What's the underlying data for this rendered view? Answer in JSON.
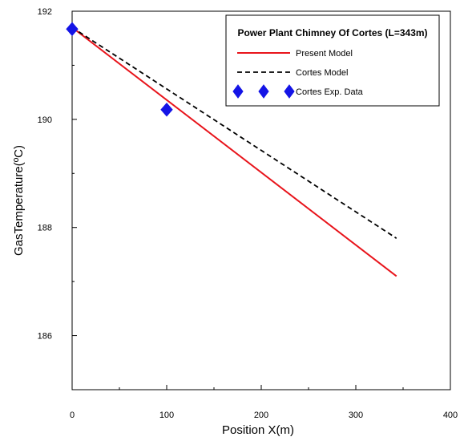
{
  "chart_data": {
    "type": "line",
    "title": "",
    "xlabel": "Position X(m)",
    "ylabel": "GasTemperature(ºC)",
    "xlim": [
      0,
      400
    ],
    "ylim": [
      185,
      192
    ],
    "x_ticks": [
      0,
      100,
      200,
      300,
      400
    ],
    "x_tick_labels": [
      "0",
      "100",
      "200",
      "300",
      "400"
    ],
    "y_ticks": [
      186,
      188,
      190,
      192
    ],
    "y_tick_labels": [
      "186",
      "188",
      "190",
      "192"
    ],
    "grid": false,
    "legend": {
      "title": "Power Plant Chimney Of Cortes (L=343m)",
      "placement": "top-right"
    },
    "series": [
      {
        "name": "Present Model",
        "style": "solid",
        "color": "#e8141b",
        "marker": "none",
        "x": [
          0,
          343
        ],
        "y": [
          191.7,
          187.1
        ]
      },
      {
        "name": "Cortes Model",
        "style": "dashed",
        "color": "#000000",
        "marker": "none",
        "x": [
          0,
          343
        ],
        "y": [
          191.7,
          187.8
        ]
      },
      {
        "name": "Cortes Exp. Data",
        "style": "none",
        "color": "#1414e6",
        "marker": "diamond",
        "x": [
          0,
          100
        ],
        "y": [
          191.67,
          190.18
        ]
      }
    ]
  }
}
